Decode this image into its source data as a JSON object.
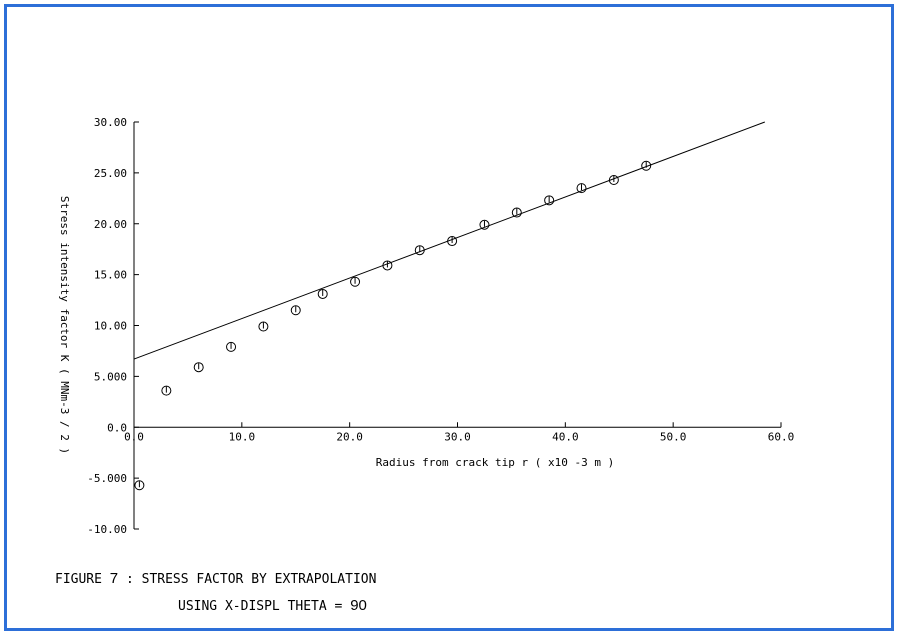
{
  "chart_data": {
    "type": "scatter",
    "xlabel": "Radius from crack tip r ( x10 -3 m )",
    "ylabel": "Stress intensity factor K ( MNm-3 / 2 )",
    "x_ticks": [
      "0.0",
      "10.0",
      "20.0",
      "30.0",
      "40.0",
      "50.0",
      "60.0"
    ],
    "y_ticks": [
      "-10.00",
      "-5.000",
      "0.0",
      "5.000",
      "10.00",
      "15.00",
      "20.00",
      "25.00",
      "30.00"
    ],
    "xlim": [
      0,
      60
    ],
    "ylim": [
      -10,
      30
    ],
    "grid": false,
    "series": [
      {
        "marker": "circle",
        "x": [
          0.5,
          3.0,
          6.0,
          9.0,
          12.0,
          15.0,
          17.5,
          20.5,
          23.5,
          26.5,
          29.5,
          32.5,
          35.5,
          38.5,
          41.5,
          44.5,
          47.5
        ],
        "y": [
          -5.7,
          3.6,
          5.9,
          7.9,
          9.9,
          11.5,
          13.1,
          14.3,
          15.9,
          17.4,
          18.3,
          19.9,
          21.1,
          22.3,
          23.5,
          24.3,
          25.7
        ]
      }
    ],
    "fit_line": {
      "x": [
        0,
        58.5
      ],
      "y": [
        6.7,
        30.0
      ]
    }
  },
  "caption": {
    "line1_text": "FIGURE ",
    "line1_number": "7",
    "line1_rest": " : STRESS FACTOR BY EXTRAPOLATION",
    "line2_text": "USING X-DISPL THETA = ",
    "line2_number": "90"
  }
}
